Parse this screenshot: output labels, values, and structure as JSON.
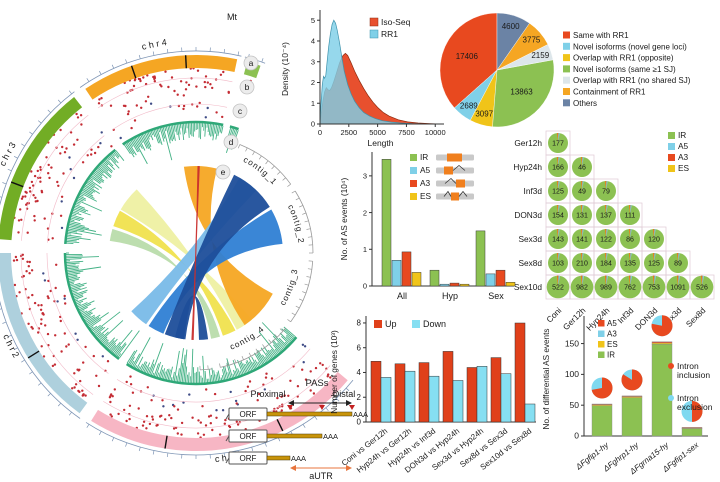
{
  "palette": {
    "ir_green": "#8cc152",
    "a5_sky": "#7fd0e8",
    "a3_red": "#e8491f",
    "es_yellow": "#f0c419",
    "up_red": "#e0401a",
    "down_sky": "#86dff2",
    "hist_green": "#2fa878",
    "scatter_red": "#c42c34",
    "scatter_blue": "#3f4c86"
  },
  "circos": {
    "mt_label": "Mt",
    "track_labels": [
      "a",
      "b",
      "c",
      "d",
      "e"
    ],
    "chromosomes": [
      {
        "name": "chr4",
        "color": "#f5a623",
        "start": 78,
        "end": 124,
        "marks": [
          93,
          109
        ]
      },
      {
        "name": "chr3",
        "color": "#72ad25",
        "start": 128,
        "end": 176,
        "marks": [
          159
        ]
      },
      {
        "name": "chr2",
        "color": "#aed0dd",
        "start": 180,
        "end": 234,
        "marks": [
          212
        ]
      },
      {
        "name": "chr1",
        "color": "#f7b6c4",
        "start": 238,
        "end": 320,
        "marks": [
          261,
          296
        ]
      },
      {
        "name": "Mt",
        "color": "#8cc152",
        "start": 71,
        "end": 75,
        "marks": []
      }
    ],
    "contigs": [
      {
        "name": "contig_1",
        "start": 36,
        "end": 68
      },
      {
        "name": "contig_2",
        "start": 0,
        "end": 32
      },
      {
        "name": "contig_3",
        "start": -36,
        "end": -4
      },
      {
        "name": "contig_4",
        "start": -78,
        "end": -40
      },
      {
        "name": "",
        "start": -88,
        "end": -82
      }
    ],
    "ribbons": [
      {
        "a": [
          133,
          150
        ],
        "b": [
          -50,
          -62
        ],
        "color": "#eef0a2"
      },
      {
        "a": [
          151,
          162
        ],
        "b": [
          -63,
          -72
        ],
        "color": "#f0e14e"
      },
      {
        "a": [
          164,
          172
        ],
        "b": [
          -74,
          -80
        ],
        "color": "#b9dcab"
      },
      {
        "a": [
          76,
          98
        ],
        "b": [
          -28,
          -56
        ],
        "color": "#f5a623"
      },
      {
        "a": [
          46,
          60
        ],
        "b": [
          222,
          235
        ],
        "color": "#79bbe8"
      },
      {
        "a": [
          6,
          30
        ],
        "b": [
          237,
          248
        ],
        "color": "#2f7fd4"
      },
      {
        "a": [
          32,
          64
        ],
        "b": [
          249,
          263
        ],
        "color": "#1d4e9a"
      },
      {
        "a": [
          256,
          262
        ],
        "b": [
          272,
          278
        ],
        "color": "#1d4e9a"
      },
      {
        "a": [
          87.5,
          89
        ],
        "b": [
          267,
          268.5
        ],
        "color": "#c92e2c"
      }
    ]
  },
  "pas_diagram": {
    "title": "PASs",
    "proximal": "Proximal",
    "distal": "Distal",
    "orf": "ORF",
    "polya": "AAA",
    "autr": "aUTR"
  },
  "chart_data": [
    {
      "id": "length_density",
      "type": "area",
      "xlabel": "Length",
      "ylabel": "Density (10⁻⁴)",
      "x_ticks": [
        0,
        2500,
        5000,
        7500,
        10000
      ],
      "y_ticks": [
        0,
        1,
        2,
        3,
        4,
        5
      ],
      "xlim": [
        0,
        10500
      ],
      "ylim": [
        0,
        5.3
      ],
      "legend_position": "top-right-inside",
      "series": [
        {
          "name": "Iso-Seq",
          "color": "#e8502e",
          "stroke": "#8e2c10",
          "x": [
            0,
            100,
            250,
            400,
            550,
            700,
            850,
            1000,
            1200,
            1400,
            1700,
            2000,
            2200,
            2400,
            2700,
            3000,
            3400,
            3800,
            4200,
            4600,
            5000,
            5500,
            6000,
            6800,
            7600,
            8500,
            9500,
            10300
          ],
          "y": [
            0,
            0.5,
            1.1,
            1.55,
            1.75,
            1.65,
            1.62,
            1.75,
            2.05,
            2.4,
            2.95,
            3.3,
            3.4,
            3.3,
            2.95,
            2.55,
            2.1,
            1.7,
            1.35,
            1.05,
            0.8,
            0.55,
            0.38,
            0.2,
            0.1,
            0.05,
            0.02,
            0
          ]
        },
        {
          "name": "RR1",
          "color": "#7fd0e8",
          "stroke": "#3e93ad",
          "x": [
            0,
            80,
            200,
            300,
            400,
            500,
            600,
            750,
            900,
            1050,
            1200,
            1350,
            1500,
            1700,
            1900,
            2100,
            2400,
            2700,
            3000,
            3400,
            3800,
            4300,
            4800,
            5400,
            6200,
            7000,
            8000,
            9000,
            10000
          ],
          "y": [
            0,
            0.9,
            1.9,
            2.3,
            2.2,
            2.35,
            2.9,
            3.7,
            4.35,
            4.8,
            5.0,
            4.85,
            4.5,
            3.9,
            3.2,
            2.55,
            1.9,
            1.45,
            1.1,
            0.78,
            0.55,
            0.38,
            0.26,
            0.16,
            0.09,
            0.05,
            0.02,
            0.01,
            0
          ]
        }
      ]
    },
    {
      "id": "isoform_classification",
      "type": "pie",
      "labels": [
        "Same with RR1",
        "Novel isoforms (novel gene loci)",
        "Overlap with RR1 (opposite)",
        "Novel isoforms (same ≥1 SJ)",
        "Overlap with RR1 (no shared SJ)",
        "Containment of RR1",
        "Others"
      ],
      "values": [
        17406,
        2689,
        3097,
        13863,
        2159,
        3775,
        4600
      ],
      "colors": [
        "#e8491f",
        "#7fd0e8",
        "#f0c419",
        "#8cc152",
        "#dde6ea",
        "#f5a623",
        "#6b83a5"
      ],
      "legend_position": "right"
    },
    {
      "id": "as_events",
      "type": "bar",
      "ylabel": "No. of AS events (10⁴)",
      "categories": [
        "All",
        "Hyp",
        "Sex"
      ],
      "y_ticks": [
        0,
        1,
        2,
        3
      ],
      "ylim": [
        0,
        3.65
      ],
      "series": [
        {
          "name": "IR",
          "color": "#8cc152",
          "values": [
            3.45,
            0.43,
            1.5
          ]
        },
        {
          "name": "A5",
          "color": "#7fd0e8",
          "values": [
            0.7,
            0.05,
            0.33
          ]
        },
        {
          "name": "A3",
          "color": "#e8491f",
          "values": [
            0.93,
            0.08,
            0.43
          ]
        },
        {
          "name": "ES",
          "color": "#f0c419",
          "values": [
            0.37,
            0.05,
            0.1
          ]
        }
      ]
    },
    {
      "id": "pairwise_as",
      "type": "pie-matrix",
      "rows": [
        "Ger12h",
        "Hyp24h",
        "Inf3d",
        "DON3d",
        "Sex3d",
        "Sex8d",
        "Sex10d"
      ],
      "cols": [
        "Coni",
        "Ger12h",
        "Hyp24h",
        "Inf3d",
        "DON3d",
        "Sex3d",
        "Sex8d"
      ],
      "values": [
        [
          177
        ],
        [
          166,
          46
        ],
        [
          125,
          49,
          79
        ],
        [
          154,
          131,
          137,
          111
        ],
        [
          143,
          141,
          122,
          86,
          120
        ],
        [
          103,
          210,
          184,
          135,
          125,
          89
        ],
        [
          522,
          982,
          989,
          762,
          753,
          1091,
          526
        ]
      ],
      "legend": [
        {
          "name": "IR",
          "color": "#8cc152"
        },
        {
          "name": "A5",
          "color": "#7fd0e8"
        },
        {
          "name": "A3",
          "color": "#e8491f"
        },
        {
          "name": "ES",
          "color": "#f0c419"
        }
      ]
    },
    {
      "id": "deg_genes",
      "type": "bar",
      "ylabel": "Number of genes (10³)",
      "categories": [
        "Coni vs Ger12h",
        "Hyp24h vs Ger12h",
        "Hyp24h vs Inf3d",
        "DON3d vs Hyp24h",
        "Sex3d vs Hyp24h",
        "Sex8d vs Sex3d",
        "Sex10d vs Sex8d"
      ],
      "y_ticks": [
        0,
        2,
        4,
        6,
        8
      ],
      "ylim": [
        0,
        8.4
      ],
      "series": [
        {
          "name": "Up",
          "color": "#e0401a",
          "values": [
            4.9,
            4.7,
            4.8,
            5.7,
            4.4,
            5.2,
            8.0
          ]
        },
        {
          "name": "Down",
          "color": "#86dff2",
          "values": [
            3.6,
            4.1,
            3.7,
            3.35,
            4.5,
            3.9,
            1.45
          ]
        }
      ]
    },
    {
      "id": "differential_as",
      "type": "stacked-bar-pie",
      "ylabel": "No. of differential AS events",
      "y_ticks": [
        0,
        50,
        100,
        150
      ],
      "ylim": [
        0,
        185
      ],
      "categories": [
        "ΔFgfip1-hy",
        "ΔFghrp1-hy",
        "ΔFgrna15-hy",
        "ΔFgfip1-sex"
      ],
      "stack_legend": [
        {
          "name": "A5",
          "color": "#e8491f"
        },
        {
          "name": "A3",
          "color": "#7fd0e8"
        },
        {
          "name": "ES",
          "color": "#f0c419"
        },
        {
          "name": "IR",
          "color": "#8cc152"
        }
      ],
      "series": [
        {
          "name": "IR",
          "color": "#8cc152",
          "values": [
            49,
            62,
            149,
            12
          ]
        },
        {
          "name": "ES",
          "color": "#f0c419",
          "values": [
            2,
            2,
            2,
            1
          ]
        },
        {
          "name": "A5",
          "color": "#e8491f",
          "values": [
            1,
            1,
            2,
            1
          ]
        }
      ],
      "pies": [
        0.72,
        0.84,
        0.78,
        0.5
      ],
      "pie_legend": [
        {
          "name": "Intron inclusion",
          "color": "#e8491f"
        },
        {
          "name": "Intron exclusion",
          "color": "#7fd9f0"
        }
      ]
    }
  ]
}
